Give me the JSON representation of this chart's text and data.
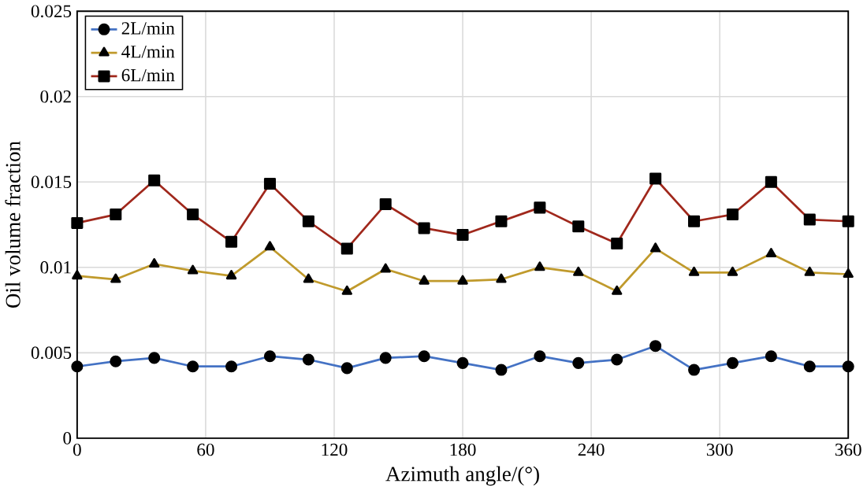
{
  "chart_data": {
    "type": "line",
    "xlabel": "Azimuth angle/(°)",
    "ylabel": "Oil volume fraction",
    "x": [
      0,
      18,
      36,
      54,
      72,
      90,
      108,
      126,
      144,
      162,
      180,
      198,
      216,
      234,
      252,
      270,
      288,
      306,
      324,
      342,
      360
    ],
    "series": [
      {
        "name": "2L/min",
        "color": "#4472c4",
        "marker": "circle",
        "values": [
          0.0042,
          0.0045,
          0.0047,
          0.0042,
          0.0042,
          0.0048,
          0.0046,
          0.0041,
          0.0047,
          0.0048,
          0.0044,
          0.004,
          0.0048,
          0.0044,
          0.0046,
          0.0054,
          0.004,
          0.0044,
          0.0048,
          0.0042,
          0.0042
        ]
      },
      {
        "name": "4L/min",
        "color": "#c09a2c",
        "marker": "triangle",
        "values": [
          0.0095,
          0.0093,
          0.0102,
          0.0098,
          0.0095,
          0.0112,
          0.0093,
          0.0086,
          0.0099,
          0.0092,
          0.0092,
          0.0093,
          0.01,
          0.0097,
          0.0086,
          0.0111,
          0.0097,
          0.0097,
          0.0108,
          0.0097,
          0.0096
        ]
      },
      {
        "name": "6L/min",
        "color": "#a0281c",
        "marker": "square",
        "values": [
          0.0126,
          0.0131,
          0.0151,
          0.0131,
          0.0115,
          0.0149,
          0.0127,
          0.0111,
          0.0137,
          0.0123,
          0.0119,
          0.0127,
          0.0135,
          0.0124,
          0.0114,
          0.0152,
          0.0127,
          0.0131,
          0.015,
          0.0128,
          0.0127
        ]
      }
    ],
    "xlim": [
      0,
      360
    ],
    "xticks": [
      0,
      60,
      120,
      180,
      240,
      300,
      360
    ],
    "ylim": [
      0,
      0.025
    ],
    "yticks": [
      0,
      0.005,
      0.01,
      0.015,
      0.02,
      0.025
    ],
    "grid": true,
    "legend": "top left",
    "line_style": "solid"
  }
}
